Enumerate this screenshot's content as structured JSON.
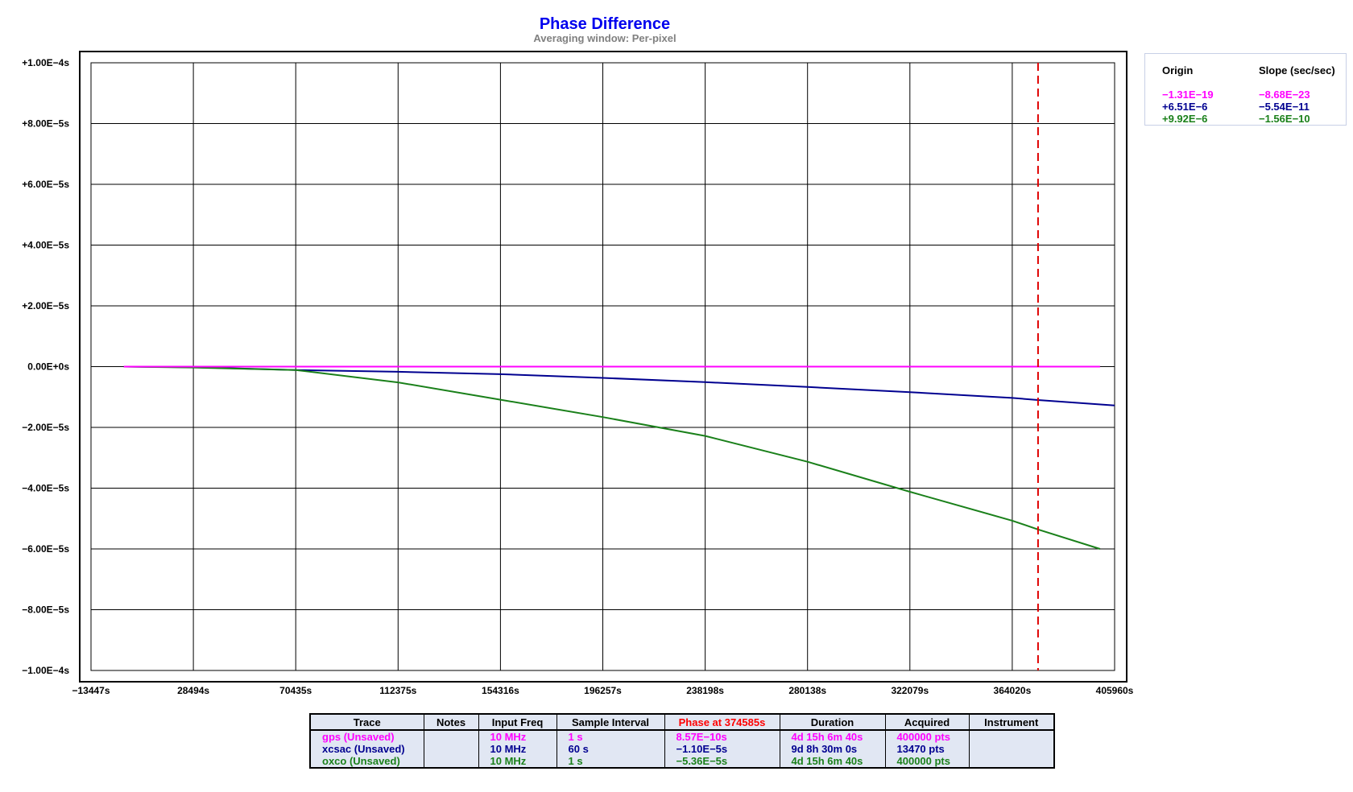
{
  "chart_data": {
    "type": "line",
    "title": "Phase Difference",
    "subtitle": "Averaging window: Per-pixel",
    "xlim": [
      -13447,
      405960
    ],
    "ylim": [
      -0.0001,
      0.0001
    ],
    "x_ticks": [
      "−13447s",
      "28494s",
      "70435s",
      "112375s",
      "154316s",
      "196257s",
      "238198s",
      "280138s",
      "322079s",
      "364020s",
      "405960s"
    ],
    "y_ticks": [
      "+1.00E−4s",
      "+8.00E−5s",
      "+6.00E−5s",
      "+4.00E−5s",
      "+2.00E−5s",
      "0.00E+0s",
      "−2.00E−5s",
      "−4.00E−5s",
      "−6.00E−5s",
      "−8.00E−5s",
      "−1.00E−4s"
    ],
    "y_tick_values": [
      0.0001,
      8e-05,
      6e-05,
      4e-05,
      2e-05,
      0,
      -2e-05,
      -4e-05,
      -6e-05,
      -8e-05,
      -0.0001
    ],
    "grid": true,
    "cursor_x": 374585,
    "series": [
      {
        "name": "gps",
        "color": "#ff00ff",
        "x": [
          0,
          400000
        ],
        "y": [
          0,
          0
        ]
      },
      {
        "name": "xcsac",
        "color": "#000090",
        "x": [
          0,
          28494,
          70435,
          112375,
          154316,
          196257,
          238198,
          280138,
          322079,
          364020,
          374585,
          405960
        ],
        "y": [
          0,
          -2e-07,
          -1.1e-06,
          -1.7e-06,
          -2.5e-06,
          -3.7e-06,
          -5.1e-06,
          -6.7e-06,
          -8.4e-06,
          -1.03e-05,
          -1.1e-05,
          -1.28e-05
        ]
      },
      {
        "name": "oxco",
        "color": "#1a801a",
        "x": [
          0,
          28494,
          70435,
          112375,
          154316,
          196257,
          238198,
          280138,
          322079,
          364020,
          374585,
          400000
        ],
        "y": [
          0,
          -3e-07,
          -1.1e-06,
          -5.2e-06,
          -1.09e-05,
          -1.66e-05,
          -2.28e-05,
          -3.13e-05,
          -4.12e-05,
          -5.07e-05,
          -5.36e-05,
          -6e-05
        ]
      }
    ]
  },
  "info": {
    "origin_header": "Origin",
    "slope_header": "Slope (sec/sec)",
    "rows": [
      {
        "origin": "−1.31E−19",
        "slope": "−8.68E−23",
        "color": "#ff00ff"
      },
      {
        "origin": "+6.51E−6",
        "slope": "−5.54E−11",
        "color": "#000090"
      },
      {
        "origin": "+9.92E−6",
        "slope": "−1.56E−10",
        "color": "#1a801a"
      }
    ]
  },
  "table": {
    "headers": [
      "Trace",
      "Notes",
      "Input Freq",
      "Sample Interval",
      "Phase at 374585s",
      "Duration",
      "Acquired",
      "Instrument"
    ],
    "phase_header_color": "#ff0000",
    "rows": [
      {
        "trace": "gps (Unsaved)",
        "notes": "",
        "freq": "10 MHz",
        "interval": "1 s",
        "phase": "8.57E−10s",
        "duration": "4d 15h 6m 40s",
        "acquired": "400000 pts",
        "instrument": "",
        "color": "#ff00ff"
      },
      {
        "trace": "xcsac (Unsaved)",
        "notes": "",
        "freq": "10 MHz",
        "interval": "60 s",
        "phase": "−1.10E−5s",
        "duration": "9d 8h 30m 0s",
        "acquired": "13470 pts",
        "instrument": "",
        "color": "#000090"
      },
      {
        "trace": "oxco (Unsaved)",
        "notes": "",
        "freq": "10 MHz",
        "interval": "1 s",
        "phase": "−5.36E−5s",
        "duration": "4d 15h 6m 40s",
        "acquired": "400000 pts",
        "instrument": "",
        "color": "#1a801a"
      }
    ]
  }
}
